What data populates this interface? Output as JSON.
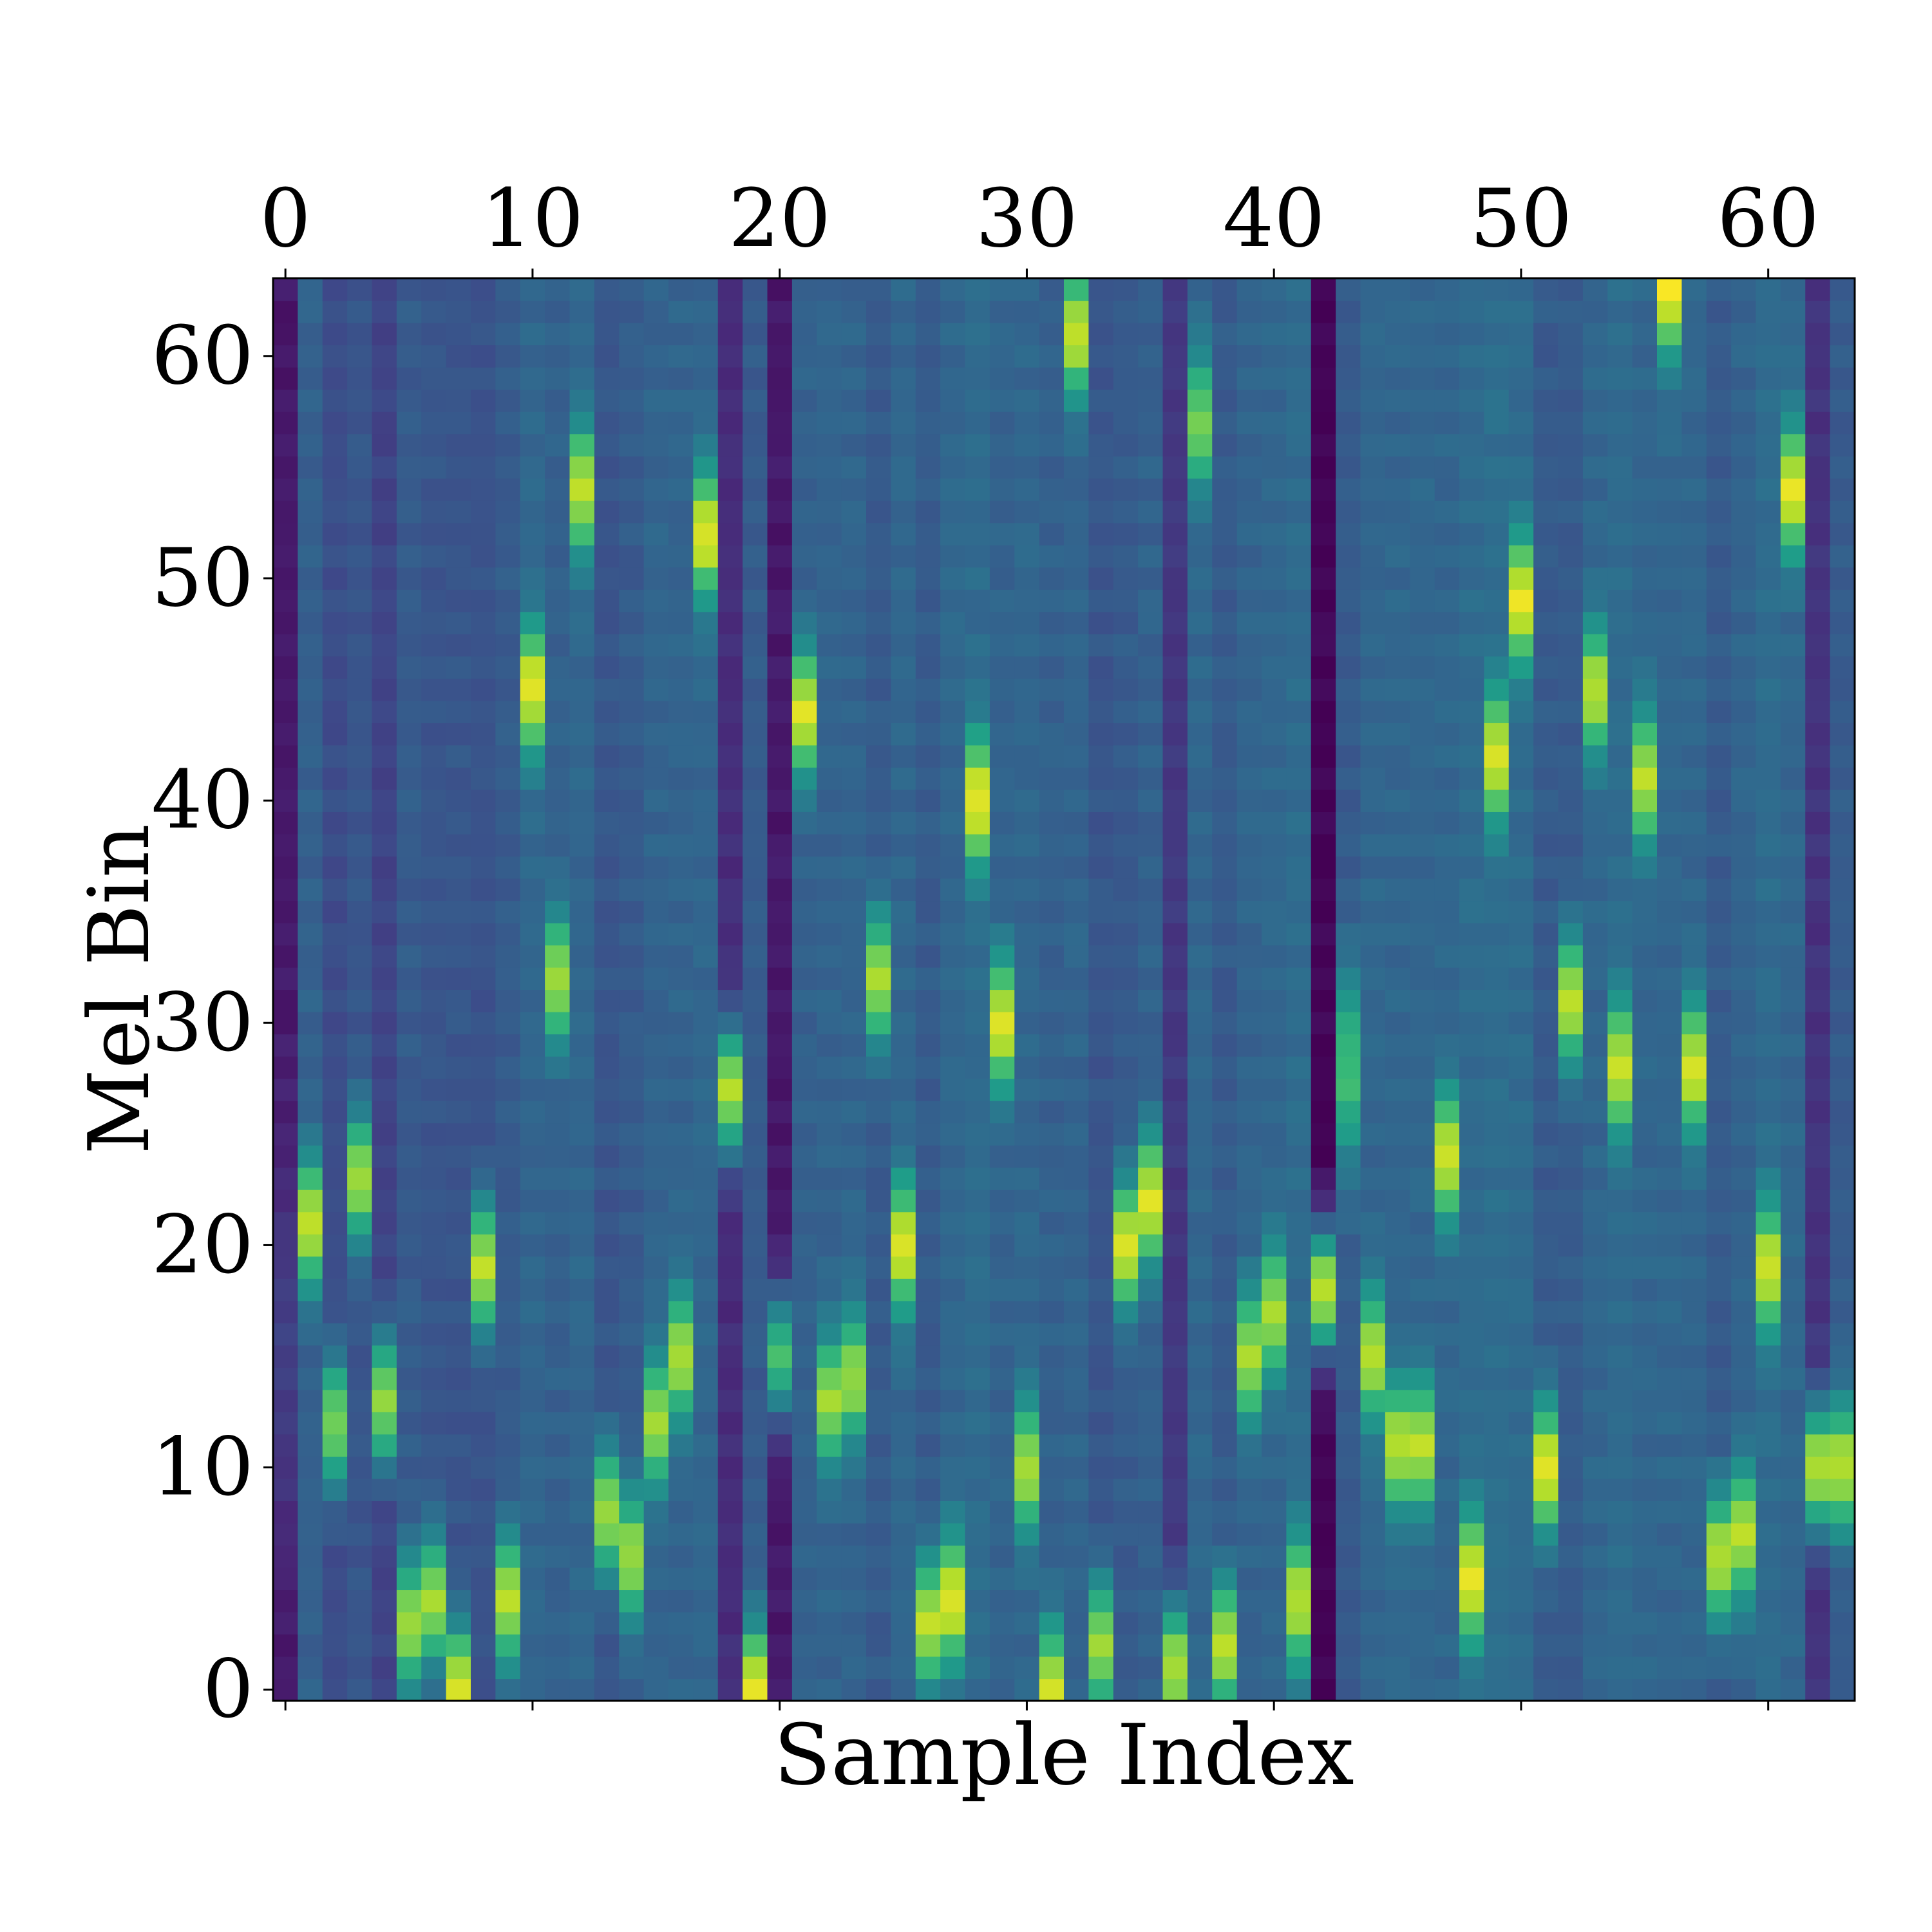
{
  "chart_data": {
    "type": "heatmap",
    "title": "",
    "xlabel": "Sample Index",
    "ylabel": "Mel Bin",
    "x_ticks": [
      "0",
      "10",
      "20",
      "30",
      "40",
      "50",
      "60"
    ],
    "y_ticks": [
      "0",
      "10",
      "20",
      "30",
      "40",
      "50",
      "60"
    ],
    "xlim": [
      -0.5,
      63.5
    ],
    "ylim": [
      -0.5,
      63.5
    ],
    "x_axis_position": "top",
    "y_origin": "lower",
    "colormap": [
      "#440154",
      "#482878",
      "#3e4989",
      "#31688e",
      "#26828e",
      "#1f9e89",
      "#35b779",
      "#6ece58",
      "#b5de2b",
      "#fde725"
    ],
    "grid": false,
    "columns": {
      "indices": [
        0,
        1,
        2,
        3,
        4,
        5,
        6,
        7,
        8,
        9,
        10,
        11,
        12,
        13,
        14,
        15,
        16,
        17,
        18,
        19,
        20,
        21,
        22,
        23,
        24,
        25,
        26,
        27,
        28,
        29,
        30,
        31,
        32,
        33,
        34,
        35,
        36,
        37,
        38,
        39,
        40,
        41,
        42,
        43,
        44,
        45,
        46,
        47,
        48,
        49,
        50,
        51,
        52,
        53,
        54,
        55,
        56,
        57,
        58,
        59,
        60,
        61,
        62,
        63
      ],
      "peak_bin": [
        15,
        21,
        12,
        23,
        13,
        3,
        4,
        0,
        19,
        4,
        45,
        32,
        54,
        8,
        6,
        12,
        15,
        52,
        27,
        0,
        15,
        44,
        13,
        14,
        32,
        20,
        3,
        4,
        40,
        30,
        10,
        0,
        61,
        2,
        20,
        22,
        1,
        57,
        2,
        15,
        17,
        4,
        18,
        28,
        15,
        11,
        11,
        24,
        5,
        42,
        49,
        10,
        31,
        45,
        28,
        41,
        63,
        28,
        6,
        7,
        19,
        54,
        10,
        10
      ],
      "peak_value": [
        0.2,
        0.92,
        0.8,
        0.86,
        0.84,
        0.86,
        0.86,
        0.95,
        0.9,
        0.9,
        0.97,
        0.86,
        0.9,
        0.85,
        0.86,
        0.86,
        0.88,
        0.96,
        0.88,
        0.97,
        0.7,
        0.95,
        0.86,
        0.86,
        0.88,
        0.96,
        0.9,
        0.97,
        0.97,
        0.95,
        0.88,
        0.93,
        0.92,
        0.86,
        0.95,
        0.95,
        0.88,
        0.8,
        0.9,
        0.88,
        0.88,
        0.9,
        0.92,
        0.7,
        0.9,
        0.9,
        0.9,
        0.94,
        0.97,
        0.95,
        0.97,
        0.97,
        0.9,
        0.9,
        0.92,
        0.9,
        0.99,
        0.95,
        0.9,
        0.9,
        0.94,
        0.96,
        0.9,
        0.9
      ],
      "peak_width": [
        6,
        2,
        2,
        2,
        2,
        2,
        2,
        2,
        2,
        2,
        2,
        2,
        2,
        2,
        2,
        2,
        2,
        2,
        2,
        2,
        2,
        2,
        2,
        2,
        2,
        2,
        2,
        2,
        2,
        2,
        2,
        2,
        2,
        2,
        2,
        2,
        2,
        2,
        2,
        2,
        2,
        2,
        2,
        3,
        2,
        2,
        2,
        2,
        2,
        2,
        2,
        2,
        2,
        2,
        2,
        2,
        2,
        2,
        2,
        2,
        2,
        2,
        2,
        2
      ],
      "base_value": [
        0.08,
        0.32,
        0.25,
        0.28,
        0.22,
        0.3,
        0.28,
        0.28,
        0.27,
        0.3,
        0.34,
        0.32,
        0.34,
        0.28,
        0.3,
        0.33,
        0.33,
        0.34,
        0.14,
        0.3,
        0.08,
        0.32,
        0.33,
        0.33,
        0.3,
        0.34,
        0.3,
        0.34,
        0.36,
        0.33,
        0.34,
        0.32,
        0.33,
        0.28,
        0.3,
        0.32,
        0.18,
        0.34,
        0.3,
        0.33,
        0.34,
        0.36,
        0.02,
        0.3,
        0.34,
        0.34,
        0.34,
        0.34,
        0.36,
        0.37,
        0.36,
        0.3,
        0.3,
        0.34,
        0.36,
        0.34,
        0.34,
        0.34,
        0.3,
        0.33,
        0.36,
        0.34,
        0.16,
        0.3
      ]
    }
  }
}
